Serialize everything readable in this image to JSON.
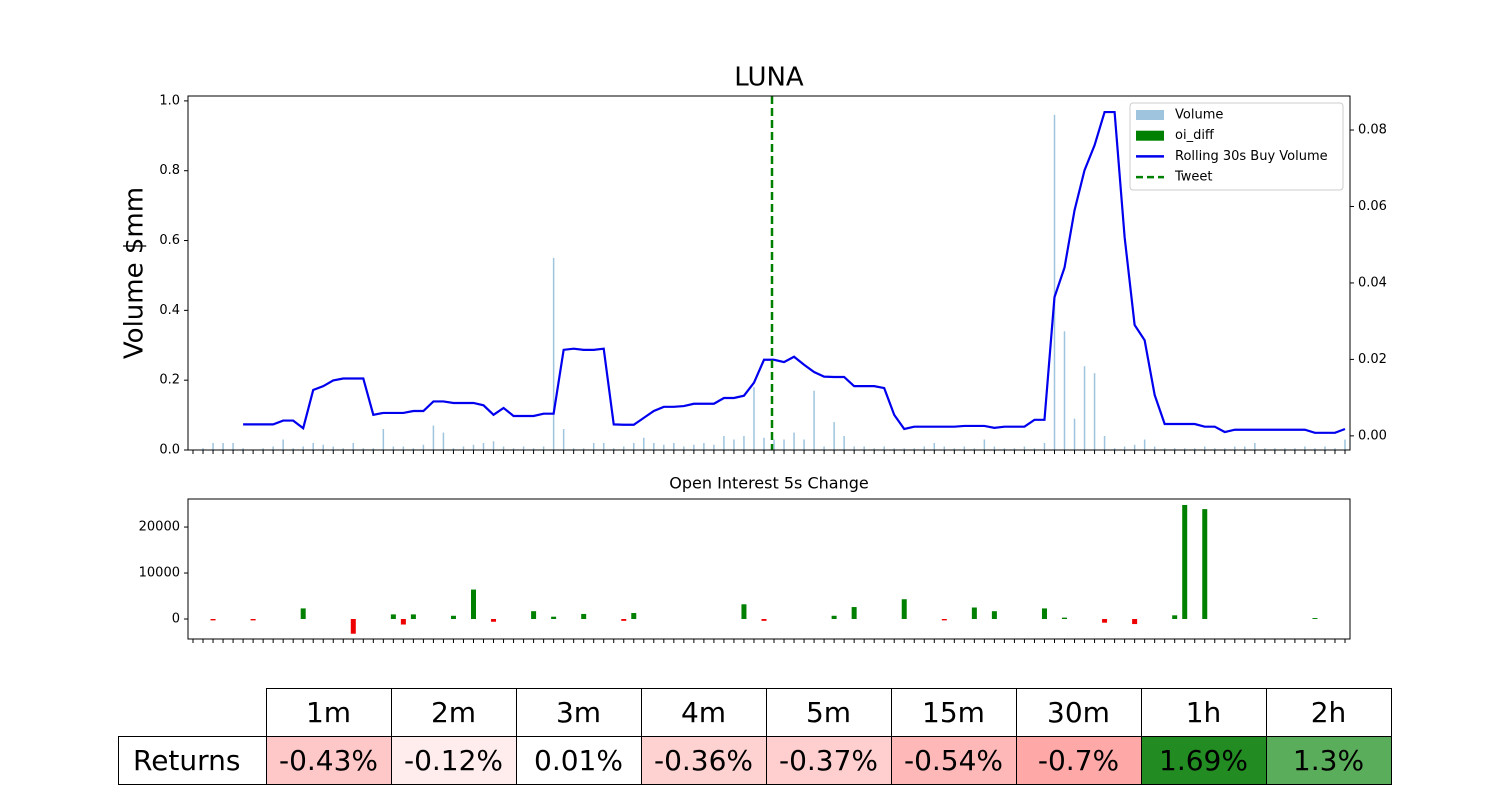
{
  "chart_data": [
    {
      "type": "bar",
      "title": "LUNA",
      "ylabel": "Volume $mm",
      "legend": "upper right",
      "ylim": [
        0,
        1.014
      ],
      "yticks": [
        {
          "value": 0,
          "label": "0.0"
        },
        0.2,
        0.4,
        0.6,
        0.8,
        {
          "value": 1,
          "label": "1.0"
        }
      ],
      "y2lim": [
        -0.0037,
        0.0889
      ],
      "y2ticks": [
        {
          "value": 0,
          "label": "0.00"
        },
        0.02,
        0.04,
        0.06,
        0.08
      ],
      "series": [
        {
          "name": "Volume",
          "type": "bar",
          "color": "#9ec4de",
          "values": [
            0,
            0.005,
            0.02,
            0.02,
            0.02,
            0.005,
            0,
            0.005,
            0.01,
            0.03,
            0.005,
            0.01,
            0.02,
            0.015,
            0.01,
            0.005,
            0.02,
            0.005,
            0.005,
            0.06,
            0.01,
            0.01,
            0.005,
            0.015,
            0.07,
            0.05,
            0.005,
            0.01,
            0.015,
            0.02,
            0.025,
            0.01,
            0.005,
            0.01,
            0.005,
            0.01,
            0.55,
            0.06,
            0.005,
            0.005,
            0.02,
            0.02,
            0.005,
            0.01,
            0.02,
            0.035,
            0.02,
            0.015,
            0.02,
            0.01,
            0.015,
            0.02,
            0.015,
            0.04,
            0.03,
            0.04,
            0.18,
            0.035,
            0.03,
            0.03,
            0.05,
            0.03,
            0.17,
            0.01,
            0.08,
            0.04,
            0.01,
            0.01,
            0.005,
            0.01,
            0.005,
            0.005,
            0.005,
            0.01,
            0.02,
            0.01,
            0.005,
            0.01,
            0.005,
            0.03,
            0.01,
            0.005,
            0.005,
            0.01,
            0.005,
            0.02,
            0.96,
            0.34,
            0.09,
            0.24,
            0.22,
            0.04,
            0.005,
            0.01,
            0.015,
            0.03,
            0.01,
            0.005,
            0.005,
            0.005,
            0.005,
            0.01,
            0.005,
            0.005,
            0.01,
            0.01,
            0.02,
            0.005,
            0.005,
            0.005,
            0.005,
            0.01,
            0.005,
            0.01,
            0.005,
            0.03
          ]
        },
        {
          "name": "Rolling 30s Buy Volume",
          "type": "line",
          "axis": "y2",
          "color": "#0000ee",
          "values": [
            null,
            null,
            null,
            null,
            null,
            0.003,
            0.003,
            0.003,
            0.003,
            0.004,
            0.004,
            0.002,
            0.012,
            0.013,
            0.0145,
            0.015,
            0.015,
            0.015,
            0.0055,
            0.006,
            0.006,
            0.006,
            0.0065,
            0.0065,
            0.009,
            0.009,
            0.0086,
            0.0086,
            0.0086,
            0.008,
            0.0055,
            0.0073,
            0.0052,
            0.0052,
            0.0052,
            0.0058,
            0.0058,
            0.0225,
            0.0228,
            0.0225,
            0.0225,
            0.0228,
            0.003,
            0.0029,
            0.0029,
            0.0047,
            0.0065,
            0.0076,
            0.0076,
            0.0078,
            0.0084,
            0.0084,
            0.0084,
            0.0099,
            0.0099,
            0.0105,
            0.0139,
            0.0199,
            0.0199,
            0.0193,
            0.0207,
            0.0186,
            0.0167,
            0.0155,
            0.0154,
            0.0154,
            0.013,
            0.013,
            0.013,
            0.0125,
            0.0055,
            0.0018,
            0.0024,
            0.0024,
            0.0024,
            0.0024,
            0.0024,
            0.0026,
            0.0026,
            0.0026,
            0.0021,
            0.0024,
            0.0024,
            0.0024,
            0.0042,
            0.0042,
            0.0363,
            0.044,
            0.059,
            0.0695,
            0.076,
            0.0847,
            0.0847,
            0.052,
            0.029,
            0.025,
            0.0107,
            0.0031,
            0.0031,
            0.0031,
            0.0031,
            0.0024,
            0.0024,
            0.001,
            0.0016,
            0.0016,
            0.0016,
            0.0016,
            0.0016,
            0.0016,
            0.0016,
            0.0016,
            0.0008,
            0.0008,
            0.0008,
            0.0018
          ]
        }
      ],
      "vlines": [
        {
          "name": "Tweet",
          "x": 58.3,
          "color": "#008000"
        }
      ]
    },
    {
      "type": "bar",
      "title": "Open Interest 5s Change",
      "ylim": [
        -4350,
        26100
      ],
      "yticks": [
        0,
        10000,
        20000
      ],
      "series": [
        {
          "name": "oi_diff",
          "color": "#008000",
          "negative_color": "#ee0000",
          "values": [
            0,
            0,
            -300,
            0,
            0,
            0,
            -300,
            0,
            0,
            0,
            0,
            2300,
            0,
            0,
            0,
            0,
            -3200,
            0,
            0,
            0,
            1000,
            -1200,
            1000,
            0,
            0,
            0,
            700,
            0,
            6400,
            0,
            -600,
            0,
            0,
            0,
            1700,
            0,
            500,
            0,
            0,
            1100,
            0,
            0,
            0,
            -400,
            1300,
            0,
            0,
            0,
            0,
            0,
            0,
            0,
            0,
            0,
            0,
            3200,
            0,
            -400,
            0,
            0,
            0,
            0,
            0,
            0,
            700,
            0,
            2600,
            0,
            0,
            0,
            0,
            4300,
            0,
            0,
            0,
            -300,
            0,
            0,
            2500,
            0,
            1700,
            0,
            0,
            0,
            0,
            2300,
            0,
            300,
            0,
            0,
            0,
            -800,
            0,
            0,
            -1100,
            0,
            0,
            0,
            800,
            24800,
            0,
            23900,
            0,
            0,
            0,
            0,
            0,
            0,
            0,
            0,
            0,
            0,
            200,
            0,
            0,
            0
          ]
        }
      ]
    }
  ],
  "table": {
    "columns": [
      "1m",
      "2m",
      "3m",
      "4m",
      "5m",
      "15m",
      "30m",
      "1h",
      "2h"
    ],
    "rows": [
      {
        "label": "Returns",
        "cells": [
          "-0.43%",
          "-0.12%",
          "0.01%",
          "-0.36%",
          "-0.37%",
          "-0.54%",
          "-0.7%",
          "1.69%",
          "1.3%"
        ],
        "colors": [
          "#ffc8c8",
          "#ffeded",
          "#ffffff",
          "#ffd2d2",
          "#ffcfcf",
          "#ffb8b8",
          "#ffa8a8",
          "#228b22",
          "#5aad5a"
        ]
      }
    ]
  }
}
